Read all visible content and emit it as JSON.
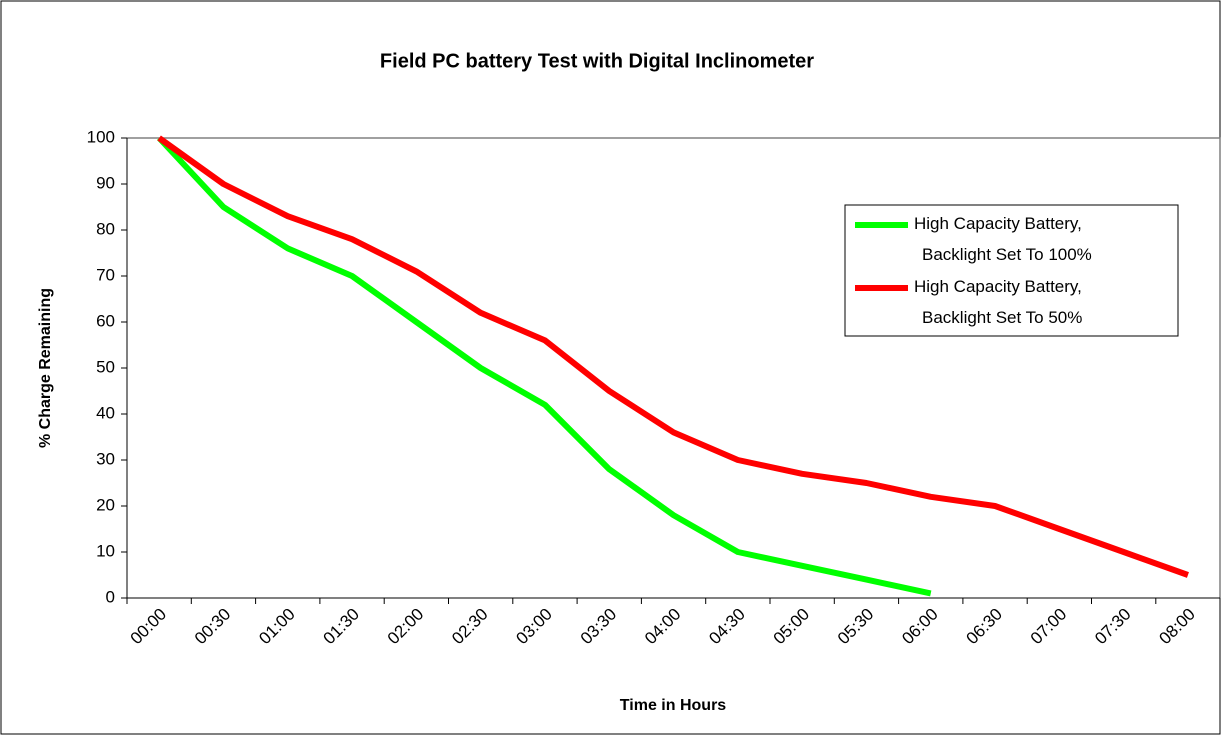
{
  "chart_data": {
    "type": "line",
    "title": "Field PC battery Test with Digital Inclinometer",
    "x_label": "Time in Hours",
    "y_label": "% Charge Remaining",
    "categories": [
      "00:00",
      "00:30",
      "01:00",
      "01:30",
      "02:00",
      "02:30",
      "03:00",
      "03:30",
      "04:00",
      "04:30",
      "05:00",
      "05:30",
      "06:00",
      "06:30",
      "07:00",
      "07:30",
      "08:00"
    ],
    "series": [
      {
        "name": "High Capacity Battery, Backlight Set To 100%",
        "color": "#00ff00",
        "values": [
          100,
          85,
          76,
          70,
          60,
          50,
          42,
          28,
          18,
          10,
          7,
          4,
          1,
          null,
          null,
          null,
          null
        ]
      },
      {
        "name": "High Capacity Battery, Backlight Set To 50%",
        "color": "#ff0000",
        "values": [
          100,
          90,
          83,
          78,
          71,
          62,
          56,
          45,
          36,
          30,
          27,
          25,
          22,
          20,
          15,
          10,
          5
        ]
      }
    ],
    "ylim": [
      0,
      100
    ],
    "yticks": [
      0,
      10,
      20,
      30,
      40,
      50,
      60,
      70,
      80,
      90,
      100
    ],
    "legend": "right"
  }
}
